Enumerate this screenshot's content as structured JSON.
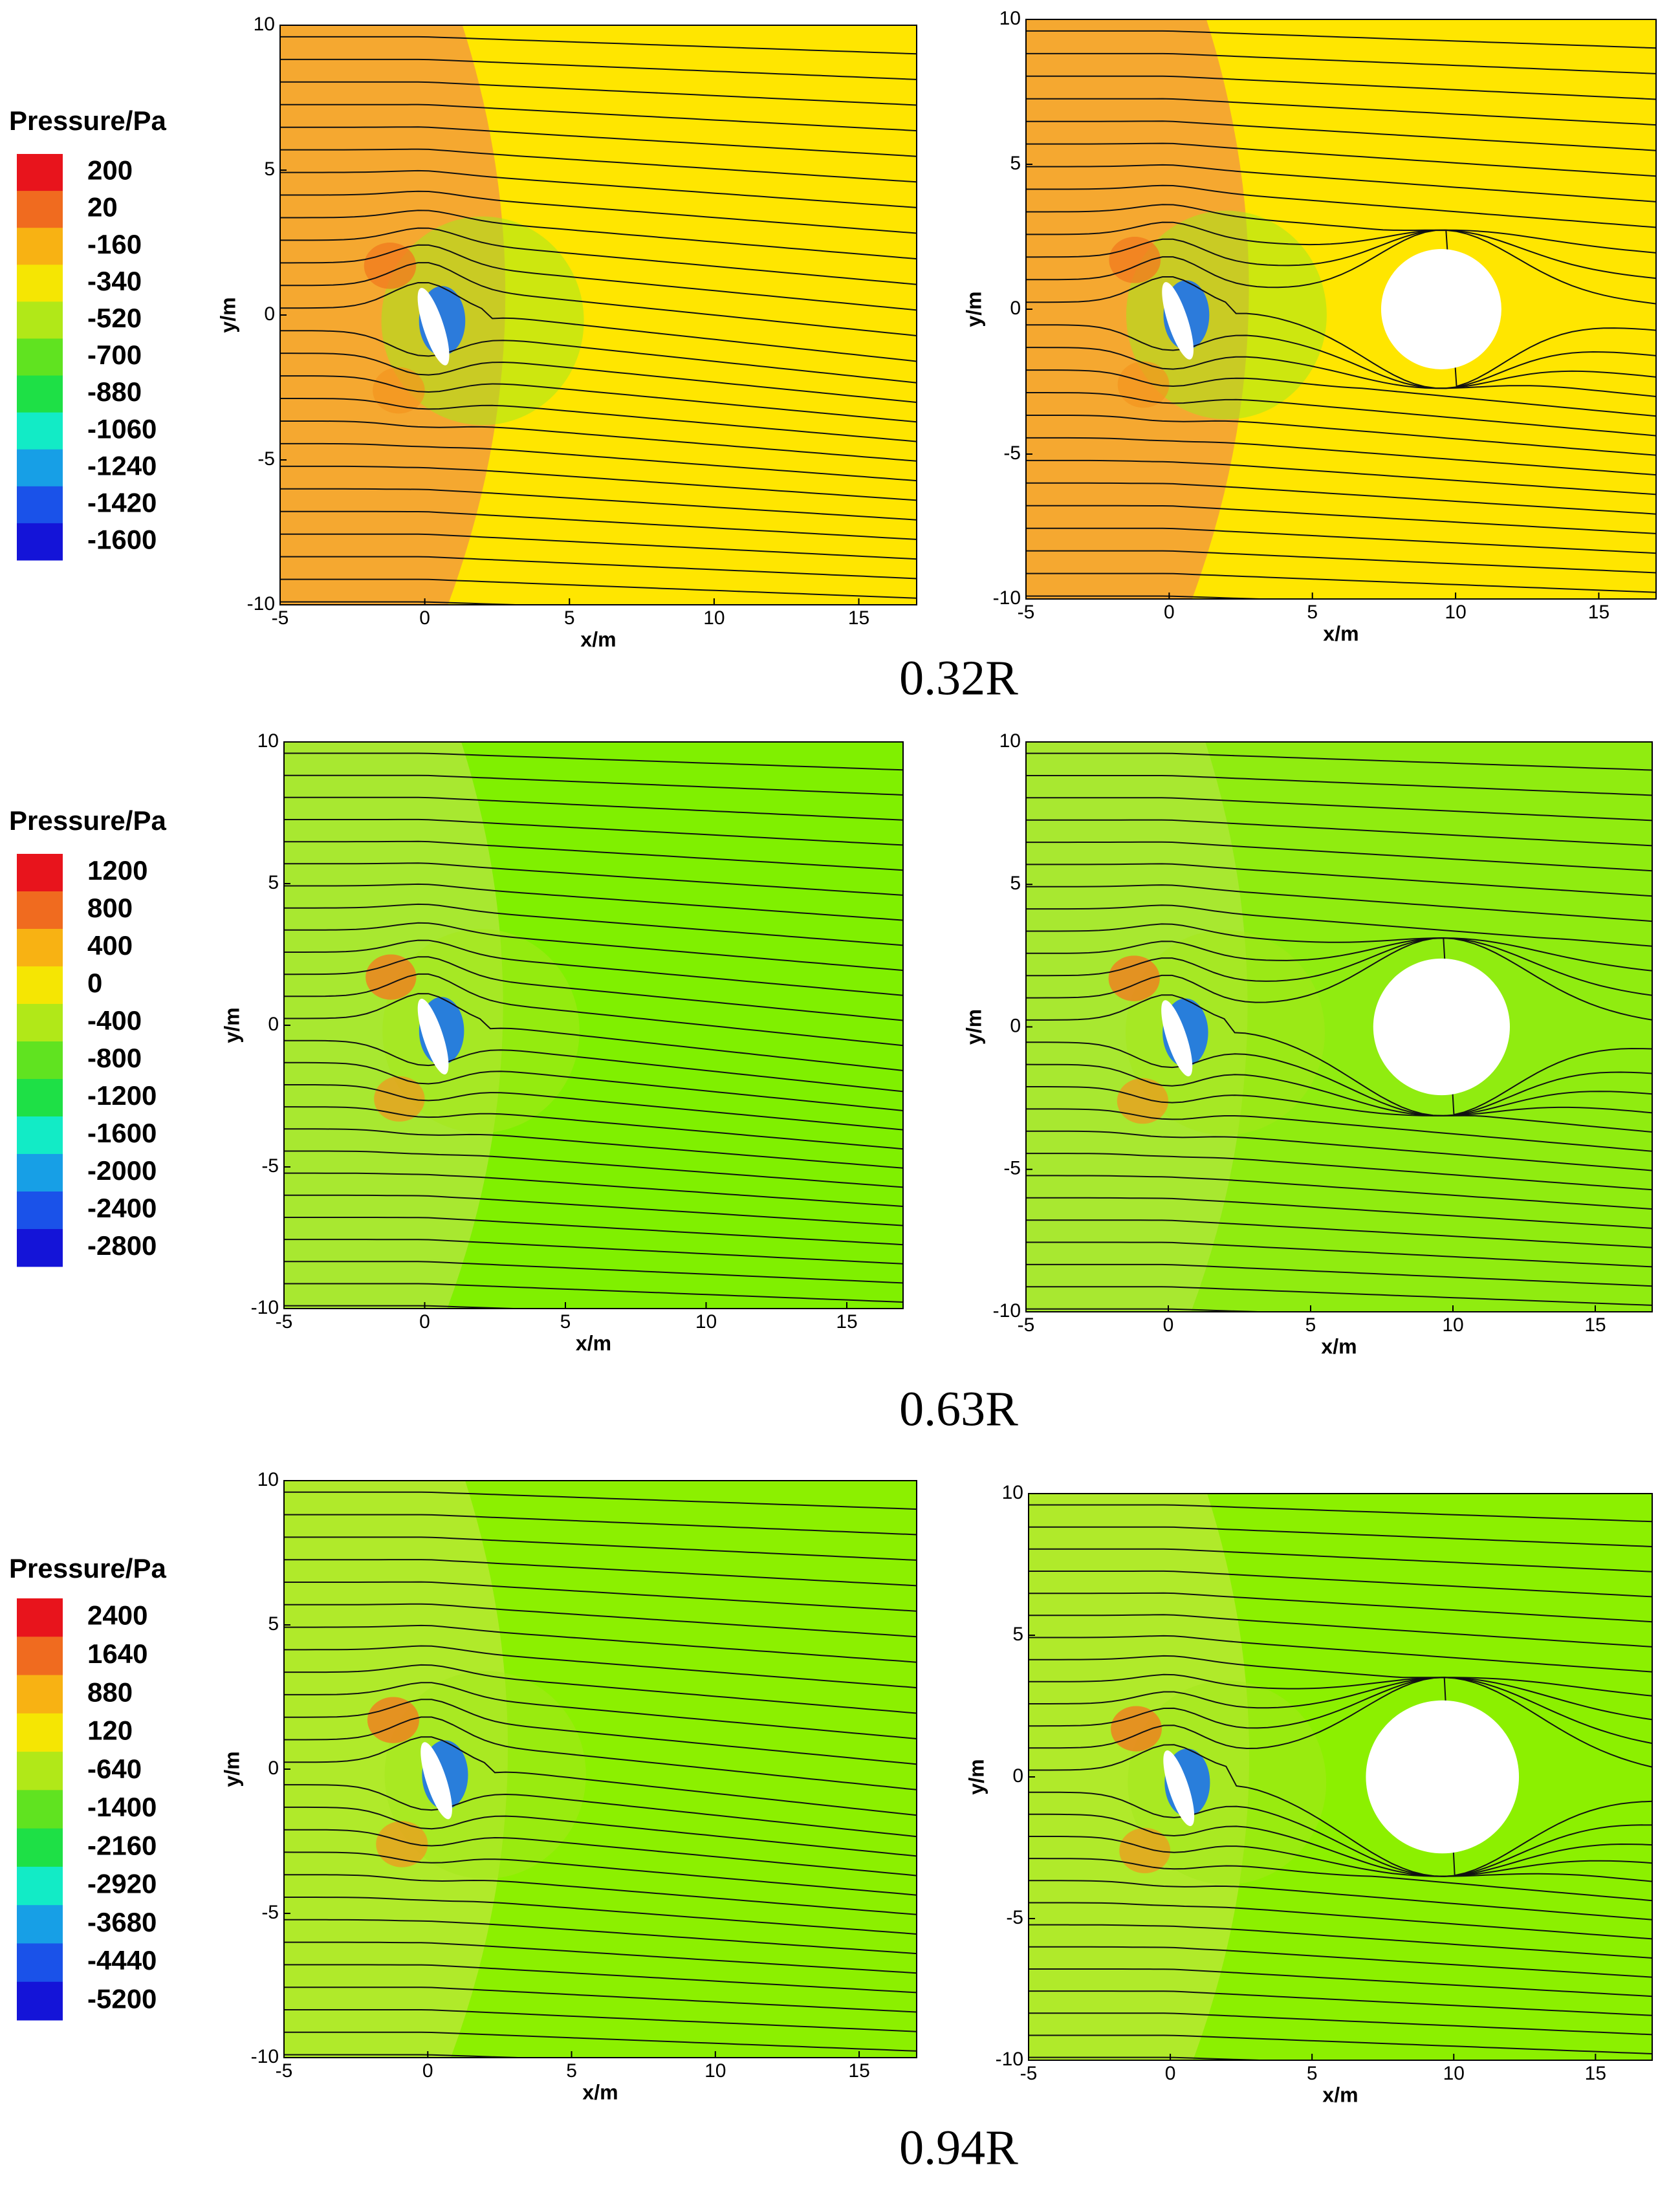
{
  "chart_data": [
    {
      "type": "contour",
      "label": "0.32R",
      "legend_title": "Pressure/Pa",
      "levels": [
        200,
        20,
        -160,
        -340,
        -520,
        -700,
        -880,
        -1060,
        -1240,
        -1420,
        -1600
      ],
      "colormap": [
        "#e8141c",
        "#f39020",
        "#ffe600",
        "#9ee81e",
        "#22dd22",
        "#10ecd8",
        "#1c6cf0",
        "#1414d8"
      ],
      "panels": [
        {
          "xlabel": "x/m",
          "ylabel": "y/m",
          "xlim": [
            -5,
            17
          ],
          "ylim": [
            -10,
            10
          ],
          "xticks": [
            -5,
            0,
            5,
            10,
            15
          ],
          "yticks": [
            -10,
            -5,
            0,
            5,
            10
          ],
          "field": [
            "#ffe600",
            "#f5a830"
          ]
        },
        {
          "xlabel": "x/m",
          "ylabel": "y/m",
          "xlim": [
            -5,
            17
          ],
          "ylim": [
            -10,
            10
          ],
          "xticks": [
            -5,
            0,
            5,
            10,
            15
          ],
          "yticks": [
            -10,
            -5,
            0,
            5,
            10
          ],
          "field": [
            "#ffe600",
            "#f5a830"
          ],
          "obstacle": {
            "x": 9.5,
            "y": 0,
            "r": 2.1
          }
        }
      ]
    },
    {
      "type": "contour",
      "label": "0.63R",
      "legend_title": "Pressure/Pa",
      "levels": [
        1200,
        800,
        400,
        0,
        -400,
        -800,
        -1200,
        -1600,
        -2000,
        -2400,
        -2800
      ],
      "colormap": [
        "#e8141c",
        "#f39020",
        "#ffe600",
        "#9ee81e",
        "#22dd22",
        "#10ecd8",
        "#1c6cf0",
        "#1414d8"
      ],
      "panels": [
        {
          "xlabel": "x/m",
          "ylabel": "y/m",
          "xlim": [
            -5,
            17
          ],
          "ylim": [
            -10,
            10
          ],
          "xticks": [
            -5,
            0,
            5,
            10,
            15
          ],
          "yticks": [
            -10,
            -5,
            0,
            5,
            10
          ],
          "field": [
            "#80f000",
            "#a8e830"
          ]
        },
        {
          "xlabel": "x/m",
          "ylabel": "y/m",
          "xlim": [
            -5,
            17
          ],
          "ylim": [
            -10,
            10
          ],
          "xticks": [
            -5,
            0,
            5,
            10,
            15
          ],
          "yticks": [
            -10,
            -5,
            0,
            5,
            10
          ],
          "field": [
            "#90ec10",
            "#a8e830"
          ],
          "obstacle": {
            "x": 9.6,
            "y": 0,
            "r": 2.4
          }
        }
      ]
    },
    {
      "type": "contour",
      "label": "0.94R",
      "legend_title": "Pressure/Pa",
      "levels": [
        2400,
        1640,
        880,
        120,
        -640,
        -1400,
        -2160,
        -2920,
        -3680,
        -4440,
        -5200
      ],
      "colormap": [
        "#e8141c",
        "#f39020",
        "#ffe600",
        "#9ee81e",
        "#22dd22",
        "#10ecd8",
        "#1c6cf0",
        "#1414d8"
      ],
      "panels": [
        {
          "xlabel": "x/m",
          "ylabel": "y/m",
          "xlim": [
            -5,
            17
          ],
          "ylim": [
            -10,
            10
          ],
          "xticks": [
            -5,
            0,
            5,
            10,
            15
          ],
          "yticks": [
            -10,
            -5,
            0,
            5,
            10
          ],
          "field": [
            "#8cf000",
            "#b0ea2a"
          ]
        },
        {
          "xlabel": "x/m",
          "ylabel": "y/m",
          "xlim": [
            -5,
            17
          ],
          "ylim": [
            -10,
            10
          ],
          "xticks": [
            -5,
            0,
            5,
            10,
            15
          ],
          "yticks": [
            -10,
            -5,
            0,
            5,
            10
          ],
          "field": [
            "#8cf000",
            "#b0ea2a"
          ],
          "obstacle": {
            "x": 9.6,
            "y": 0,
            "r": 2.7
          }
        }
      ]
    }
  ]
}
